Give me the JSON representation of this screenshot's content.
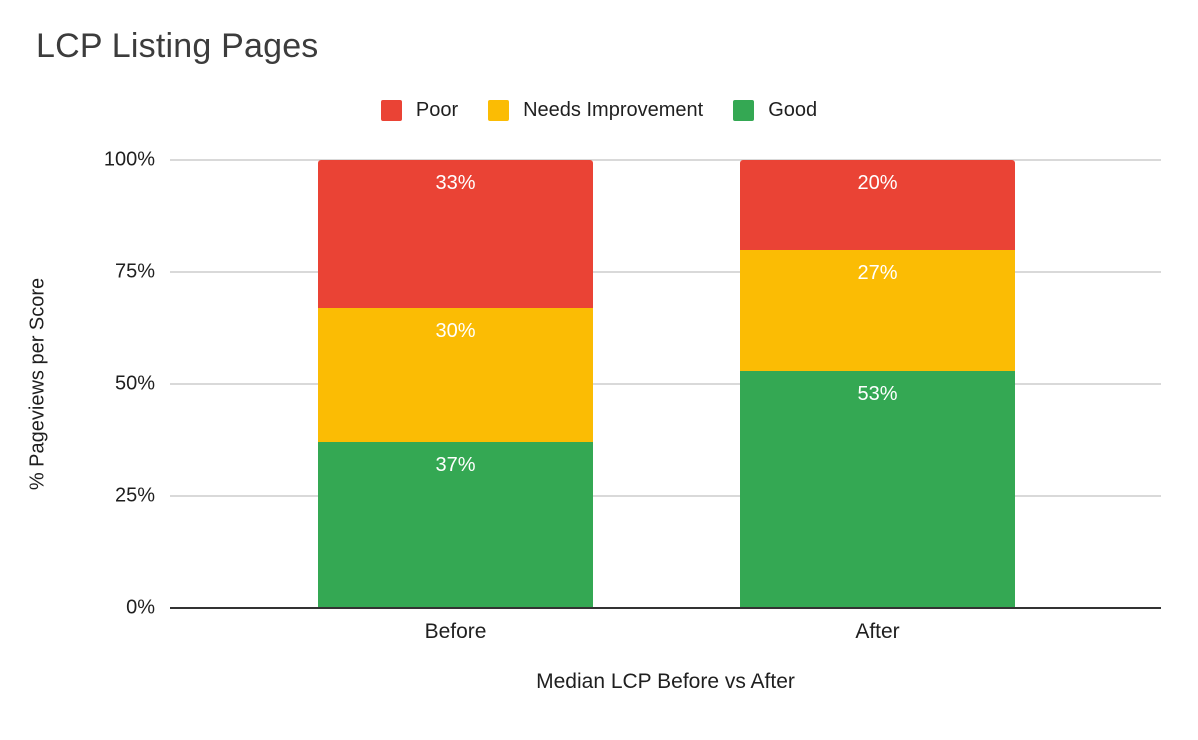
{
  "title": "LCP Listing Pages",
  "chart_data": {
    "type": "bar",
    "stacked": true,
    "orientation": "vertical",
    "title": "LCP Listing Pages",
    "categories": [
      "Before",
      "After"
    ],
    "series": [
      {
        "name": "Poor",
        "color": "#EA4335",
        "values": [
          33,
          20
        ]
      },
      {
        "name": "Needs Improvement",
        "color": "#FBBC04",
        "values": [
          30,
          27
        ]
      },
      {
        "name": "Good",
        "color": "#34A853",
        "values": [
          37,
          53
        ]
      }
    ],
    "stack_order_top_to_bottom": [
      "Poor",
      "Needs Improvement",
      "Good"
    ],
    "data_labels": {
      "visible": true,
      "suffix": "%",
      "color": "#ffffff",
      "position": "inside-top"
    },
    "xlabel": "Median LCP Before vs After",
    "ylabel": "% Pageviews per Score",
    "ylim": [
      0,
      100
    ],
    "yticks": [
      0,
      25,
      50,
      75,
      100
    ],
    "ytick_suffix": "%",
    "grid": true,
    "legend_position": "top-center"
  },
  "colors": {
    "gridline": "#d9d9d9",
    "baseline": "#333333",
    "title_text": "#3c3c3c",
    "axis_text": "#1f1f1f",
    "background": "#ffffff"
  }
}
